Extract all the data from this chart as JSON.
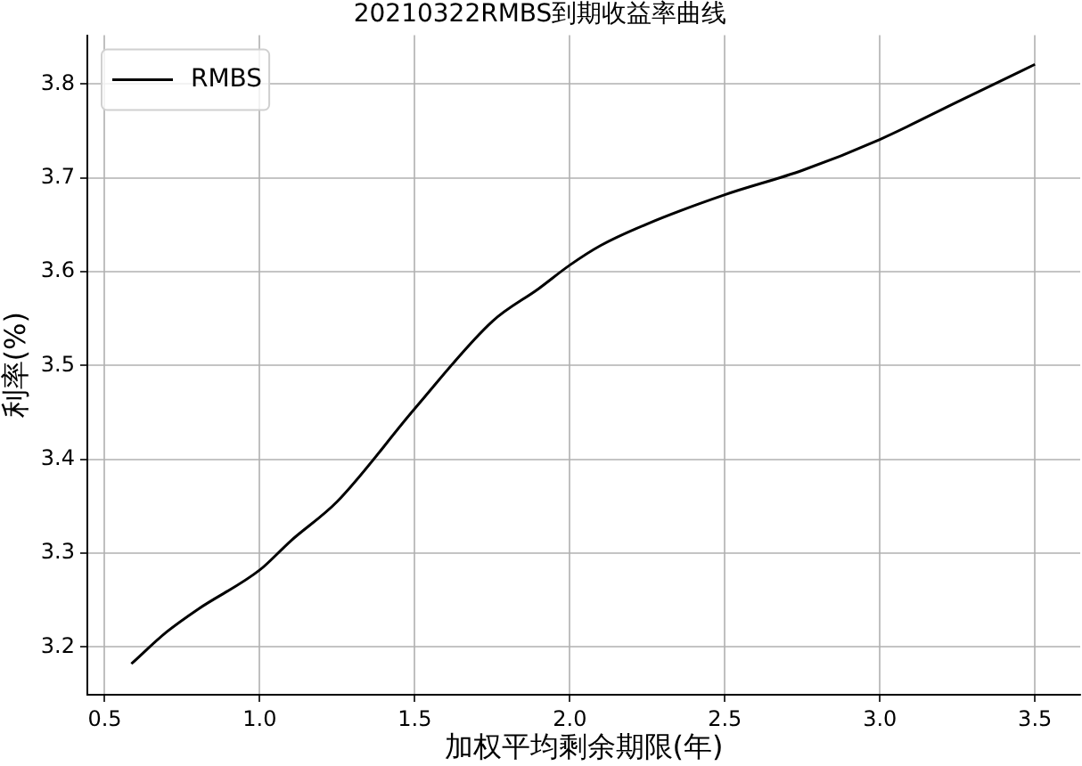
{
  "chart_data": {
    "type": "line",
    "title": "20210322RMBS到期收益率曲线",
    "xlabel": "加权平均剩余期限(年)",
    "ylabel": "利率(%)",
    "xlim": [
      0.444,
      3.646
    ],
    "ylim": [
      3.149,
      3.852
    ],
    "xticks": [
      0.5,
      {
        "value": 1,
        "label": "1.0"
      },
      1.5,
      {
        "value": 2,
        "label": "2.0"
      },
      2.5,
      {
        "value": 3,
        "label": "3.0"
      },
      3.5
    ],
    "yticks": [
      3.2,
      3.3,
      3.4,
      3.5,
      3.6,
      3.7,
      3.8
    ],
    "grid": true,
    "legend": "top left",
    "marker": "none",
    "line_style": "solid",
    "series": [
      {
        "name": "RMBS",
        "color": "#000000",
        "x": [
          0.586,
          0.7,
          0.8,
          1.0,
          1.1,
          1.25,
          1.5,
          1.75,
          1.9,
          2.0,
          2.1,
          2.25,
          2.5,
          2.75,
          3.0,
          3.25,
          3.5
        ],
        "values": [
          3.182,
          3.216,
          3.24,
          3.282,
          3.313,
          3.355,
          3.454,
          3.547,
          3.582,
          3.607,
          3.628,
          3.651,
          3.682,
          3.708,
          3.741,
          3.781,
          3.821
        ]
      }
    ]
  }
}
